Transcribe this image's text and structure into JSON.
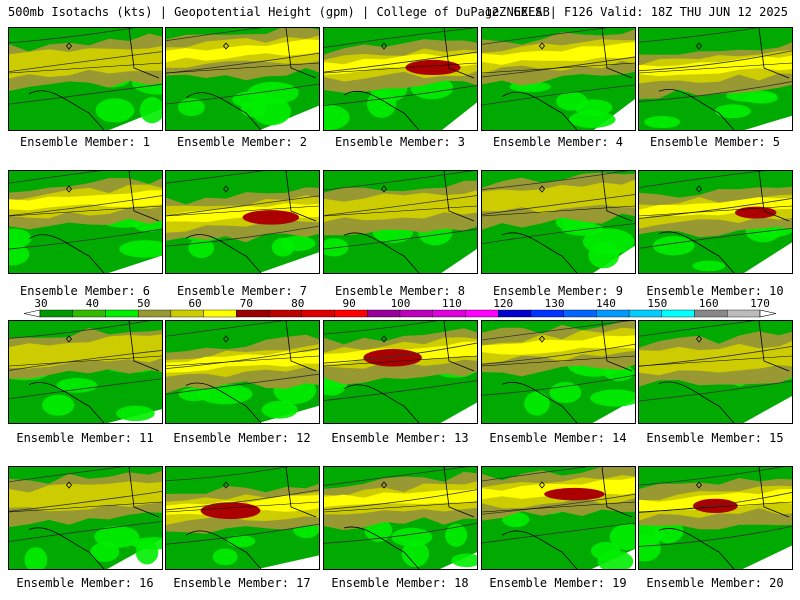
{
  "header": {
    "left": "500mb Isotachs (kts) | Geopotential Height (gpm) | College of DuPage NEXLAB",
    "right": "12Z GEFS | F126 Valid: 18Z THU JUN 12 2025"
  },
  "caption_prefix": "Ensemble Member: ",
  "members": [
    {
      "label": "Ensemble Member: 1",
      "number": 1,
      "max_kts": 65
    },
    {
      "label": "Ensemble Member: 2",
      "number": 2,
      "max_kts": 72
    },
    {
      "label": "Ensemble Member: 3",
      "number": 3,
      "max_kts": 90
    },
    {
      "label": "Ensemble Member: 4",
      "number": 4,
      "max_kts": 72
    },
    {
      "label": "Ensemble Member: 5",
      "number": 5,
      "max_kts": 78
    },
    {
      "label": "Ensemble Member: 6",
      "number": 6,
      "max_kts": 78
    },
    {
      "label": "Ensemble Member: 7",
      "number": 7,
      "max_kts": 80
    },
    {
      "label": "Ensemble Member: 8",
      "number": 8,
      "max_kts": 65
    },
    {
      "label": "Ensemble Member: 9",
      "number": 9,
      "max_kts": 60
    },
    {
      "label": "Ensemble Member: 10",
      "number": 10,
      "max_kts": 80
    },
    {
      "label": "Ensemble Member: 11",
      "number": 11,
      "max_kts": 62
    },
    {
      "label": "Ensemble Member: 12",
      "number": 12,
      "max_kts": 78
    },
    {
      "label": "Ensemble Member: 13",
      "number": 13,
      "max_kts": 80
    },
    {
      "label": "Ensemble Member: 14",
      "number": 14,
      "max_kts": 78
    },
    {
      "label": "Ensemble Member: 15",
      "number": 15,
      "max_kts": 65
    },
    {
      "label": "Ensemble Member: 16",
      "number": 16,
      "max_kts": 62
    },
    {
      "label": "Ensemble Member: 17",
      "number": 17,
      "max_kts": 80
    },
    {
      "label": "Ensemble Member: 18",
      "number": 18,
      "max_kts": 70
    },
    {
      "label": "Ensemble Member: 19",
      "number": 19,
      "max_kts": 80
    },
    {
      "label": "Ensemble Member: 20",
      "number": 20,
      "max_kts": 85
    }
  ],
  "colorbar": {
    "labels": [
      "30",
      "40",
      "50",
      "60",
      "70",
      "80",
      "90",
      "100",
      "110",
      "120",
      "130",
      "140",
      "150",
      "160",
      "170"
    ],
    "colors": [
      "#009900",
      "#33bb00",
      "#00ee00",
      "#999933",
      "#cccc00",
      "#ffff00",
      "#990000",
      "#bb0000",
      "#dd0000",
      "#ff0000",
      "#990099",
      "#bb00bb",
      "#dd00dd",
      "#ff00ff",
      "#0000cc",
      "#0033ff",
      "#0066ff",
      "#0099ff",
      "#00ccff",
      "#00ffff",
      "#888888",
      "#bbbbbb"
    ]
  },
  "map_colors": {
    "lt30": "#00aa00",
    "k30": "#33cc00",
    "k40": "#00ee00",
    "k50": "#999933",
    "k60": "#cccc00",
    "k70": "#ffff00",
    "k80": "#aa0000",
    "land_blank": "#ffffff",
    "contour": "#333333",
    "border": "#000000"
  }
}
